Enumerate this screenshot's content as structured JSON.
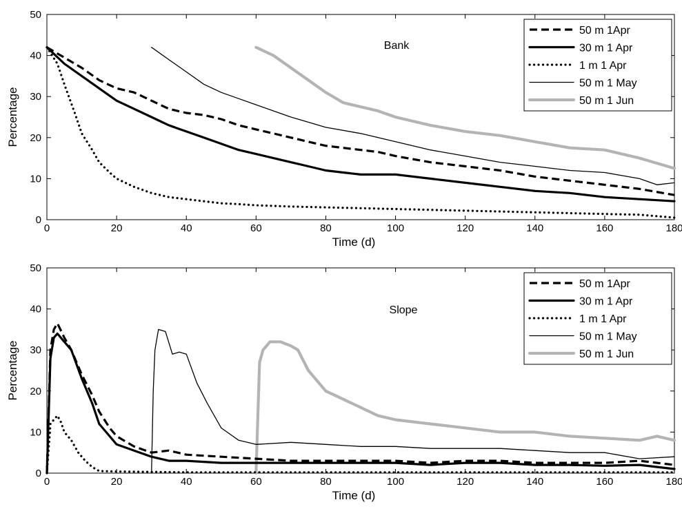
{
  "chart_data": [
    {
      "type": "line",
      "annotation": "Bank",
      "xlabel": "Time (d)",
      "ylabel": "Percentage",
      "xlim": [
        0,
        180
      ],
      "ylim": [
        0,
        50
      ],
      "xticks": [
        0,
        20,
        40,
        60,
        80,
        100,
        120,
        140,
        160,
        180
      ],
      "yticks": [
        0,
        10,
        20,
        30,
        40,
        50
      ],
      "grid": false,
      "legend_position": "top-right",
      "series": [
        {
          "name": "50 m 1Apr",
          "style": "dashed",
          "color": "#000000",
          "x": [
            0,
            5,
            10,
            15,
            20,
            25,
            30,
            35,
            40,
            45,
            50,
            55,
            60,
            65,
            70,
            75,
            80,
            85,
            90,
            95,
            100,
            110,
            120,
            130,
            140,
            150,
            160,
            170,
            180
          ],
          "y": [
            42,
            39.5,
            37,
            34,
            32,
            31,
            29,
            27,
            26,
            25.5,
            24.5,
            23,
            22,
            21,
            20,
            19,
            18,
            17.5,
            17,
            16.5,
            15.5,
            14,
            13,
            12,
            10.5,
            9.5,
            8.5,
            7.5,
            6
          ]
        },
        {
          "name": "30 m 1 Apr",
          "style": "thick",
          "color": "#000000",
          "x": [
            0,
            5,
            10,
            15,
            20,
            25,
            30,
            35,
            40,
            45,
            50,
            55,
            60,
            65,
            70,
            75,
            80,
            85,
            90,
            95,
            100,
            110,
            120,
            130,
            140,
            150,
            160,
            170,
            180
          ],
          "y": [
            42,
            38,
            35,
            32,
            29,
            27,
            25,
            23,
            21.5,
            20,
            18.5,
            17,
            16,
            15,
            14,
            13,
            12,
            11.5,
            11,
            11,
            11,
            10,
            9,
            8,
            7,
            6.5,
            5.5,
            5,
            4.5
          ]
        },
        {
          "name": "1 m 1 Apr",
          "style": "dotted",
          "color": "#000000",
          "x": [
            0,
            3,
            5,
            8,
            10,
            13,
            15,
            18,
            20,
            25,
            30,
            35,
            40,
            45,
            50,
            55,
            60,
            70,
            80,
            90,
            100,
            110,
            120,
            130,
            140,
            150,
            160,
            170,
            180
          ],
          "y": [
            42,
            38,
            33,
            26,
            21,
            17,
            14,
            11.5,
            10,
            8,
            6.5,
            5.5,
            5,
            4.5,
            4,
            3.8,
            3.5,
            3.2,
            3,
            2.8,
            2.6,
            2.4,
            2.2,
            2,
            1.8,
            1.6,
            1.4,
            1.2,
            0.5
          ]
        },
        {
          "name": "50 m 1 May",
          "style": "thin",
          "color": "#000000",
          "x": [
            30,
            35,
            40,
            45,
            50,
            55,
            60,
            70,
            80,
            90,
            100,
            110,
            120,
            130,
            140,
            150,
            160,
            170,
            175,
            180
          ],
          "y": [
            42,
            39,
            36,
            33,
            31,
            29.5,
            28,
            25,
            22.5,
            21,
            19,
            17,
            15.5,
            14,
            13,
            12,
            11.5,
            10,
            8.5,
            9
          ]
        },
        {
          "name": "50 m 1 Jun",
          "style": "thick-gray",
          "color": "#b4b4b4",
          "x": [
            60,
            65,
            70,
            75,
            80,
            85,
            90,
            95,
            100,
            110,
            120,
            130,
            140,
            150,
            160,
            170,
            180
          ],
          "y": [
            42,
            40,
            37,
            34,
            31,
            28.5,
            27.5,
            26.5,
            25,
            23,
            21.5,
            20.5,
            19,
            17.5,
            17,
            15,
            12.5
          ]
        }
      ]
    },
    {
      "type": "line",
      "annotation": "Slope",
      "xlabel": "Time (d)",
      "ylabel": "Percentage",
      "xlim": [
        0,
        180
      ],
      "ylim": [
        0,
        50
      ],
      "xticks": [
        0,
        20,
        40,
        60,
        80,
        100,
        120,
        140,
        160,
        180
      ],
      "yticks": [
        0,
        10,
        20,
        30,
        40,
        50
      ],
      "grid": false,
      "legend_position": "top-right",
      "series": [
        {
          "name": "50 m 1Apr",
          "style": "dashed",
          "color": "#000000",
          "x": [
            0,
            1,
            2,
            3,
            5,
            7,
            10,
            13,
            15,
            18,
            20,
            25,
            30,
            35,
            40,
            50,
            60,
            70,
            80,
            90,
            100,
            110,
            120,
            130,
            140,
            150,
            160,
            170,
            180
          ],
          "y": [
            0,
            30,
            35,
            36.5,
            33,
            30,
            24,
            19,
            15,
            11,
            9,
            6.5,
            5,
            5.5,
            4.5,
            4,
            3.5,
            3,
            3,
            3,
            3,
            2.5,
            3,
            3,
            2.5,
            2.5,
            2.5,
            3,
            2
          ]
        },
        {
          "name": "30 m 1 Apr",
          "style": "thick",
          "color": "#000000",
          "x": [
            0,
            1,
            2,
            3,
            5,
            7,
            10,
            13,
            15,
            18,
            20,
            25,
            30,
            35,
            40,
            50,
            60,
            70,
            80,
            90,
            100,
            110,
            120,
            130,
            140,
            150,
            160,
            170,
            180
          ],
          "y": [
            0,
            28,
            33,
            34,
            32,
            30,
            23,
            17,
            12,
            9,
            7,
            5.5,
            4,
            3,
            3,
            2.5,
            2.5,
            2.5,
            2.5,
            2.5,
            2.5,
            2,
            2.5,
            2.5,
            2,
            2,
            1.8,
            2,
            1
          ]
        },
        {
          "name": "1 m 1 Apr",
          "style": "dotted",
          "color": "#000000",
          "x": [
            0,
            1,
            2,
            3,
            4,
            5,
            7,
            9,
            11,
            13,
            15,
            20,
            30,
            40,
            60,
            80,
            100,
            120,
            140,
            160,
            180
          ],
          "y": [
            0,
            12,
            13,
            14,
            12.5,
            10,
            8,
            5,
            3,
            1.5,
            0.5,
            0.4,
            0.3,
            0.2,
            0.2,
            0.2,
            0.2,
            0.2,
            0.2,
            0.2,
            0.2
          ]
        },
        {
          "name": "50 m 1 May",
          "style": "thin",
          "color": "#000000",
          "x": [
            30,
            30.5,
            31,
            32,
            34,
            36,
            38,
            40,
            43,
            46,
            50,
            55,
            60,
            70,
            80,
            90,
            100,
            110,
            120,
            130,
            140,
            150,
            160,
            170,
            180
          ],
          "y": [
            0,
            20,
            30,
            35,
            34.5,
            29,
            29.5,
            29,
            22,
            17,
            11,
            8,
            7,
            7.5,
            7,
            6.5,
            6.5,
            6,
            6,
            6,
            5.5,
            5,
            5,
            3.5,
            4
          ]
        },
        {
          "name": "50 m 1 Jun",
          "style": "thick-gray",
          "color": "#b4b4b4",
          "x": [
            60,
            61,
            62,
            64,
            67,
            70,
            72,
            75,
            80,
            85,
            90,
            95,
            100,
            110,
            120,
            130,
            140,
            150,
            160,
            170,
            175,
            180
          ],
          "y": [
            0,
            27,
            30,
            32,
            32,
            31,
            30,
            25,
            20,
            18,
            16,
            14,
            13,
            12,
            11,
            10,
            10,
            9,
            8.5,
            8,
            9,
            8
          ]
        }
      ]
    }
  ]
}
